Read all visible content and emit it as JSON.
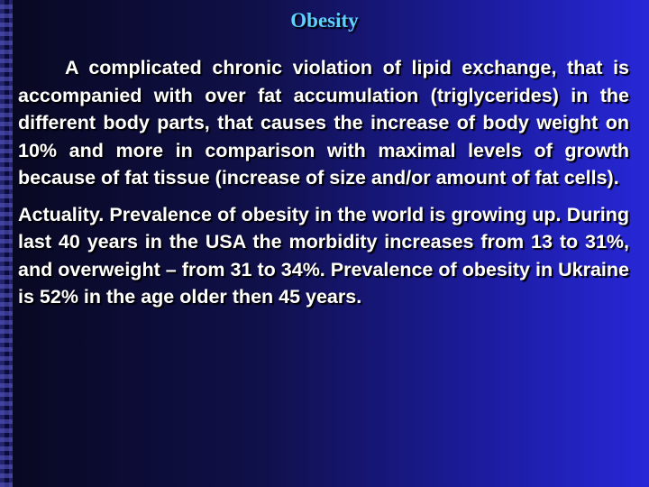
{
  "slide": {
    "title": "Obesity",
    "paragraphs": [
      "A complicated chronic violation of lipid exchange, that is accompanied with over fat accumulation (triglycerides) in the different body parts, that causes the increase of body weight on 10% and more in comparison with maximal levels of growth because of fat tissue (increase of size and/or amount of fat cells).",
      "Actuality. Prevalence of obesity in the world is growing up. During last 40 years in the USA the morbidity increases from 13 to 31%, and overweight – from 31 to 34%. Prevalence of obesity in Ukraine is 52% in the age older then 45 years."
    ]
  },
  "colors": {
    "title": "#5fd0ff",
    "text": "#ffffff",
    "background_dark": "#080821",
    "background_light": "#2727d8"
  }
}
